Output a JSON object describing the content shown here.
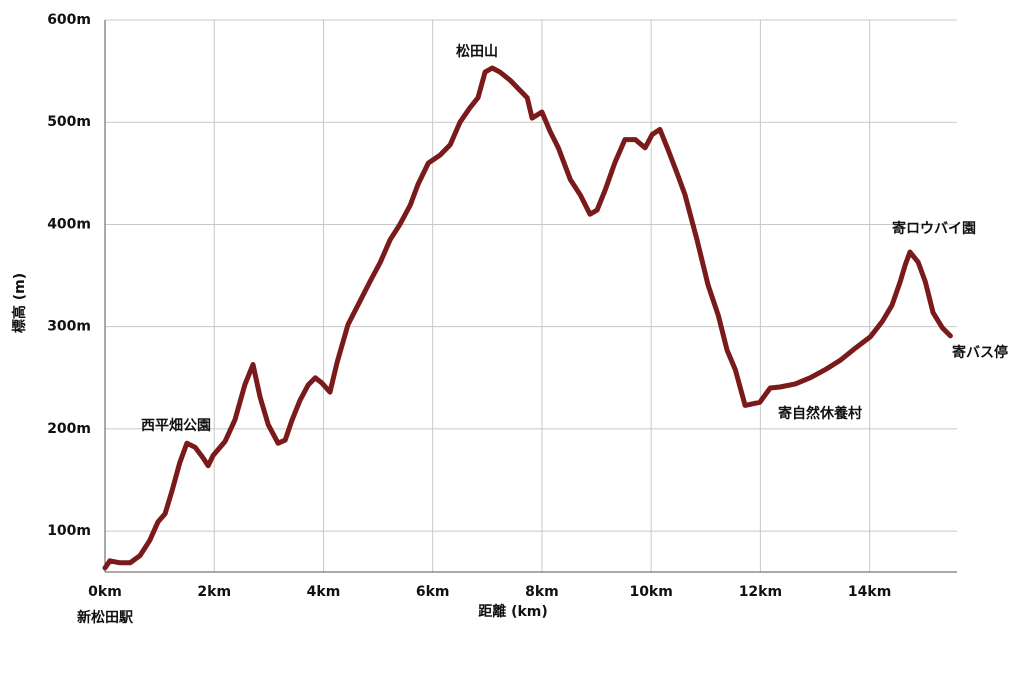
{
  "chart_data": {
    "type": "line",
    "xlabel": "距離 (km)",
    "ylabel": "標高 (m)",
    "xlim": [
      0,
      15.6
    ],
    "ylim": [
      60,
      600
    ],
    "xticks": [
      {
        "value": 0,
        "label": "0km"
      },
      {
        "value": 2,
        "label": "2km"
      },
      {
        "value": 4,
        "label": "4km"
      },
      {
        "value": 6,
        "label": "6km"
      },
      {
        "value": 8,
        "label": "8km"
      },
      {
        "value": 10,
        "label": "10km"
      },
      {
        "value": 12,
        "label": "12km"
      },
      {
        "value": 14,
        "label": "14km"
      }
    ],
    "yticks": [
      {
        "value": 100,
        "label": "100m"
      },
      {
        "value": 200,
        "label": "200m"
      },
      {
        "value": 300,
        "label": "300m"
      },
      {
        "value": 400,
        "label": "400m"
      },
      {
        "value": 500,
        "label": "500m"
      },
      {
        "value": 600,
        "label": "600m"
      }
    ],
    "grid": true,
    "annotations": [
      "新松田駅",
      "西平畑公園",
      "松田山",
      "寄自然休養村",
      "寄ロウバイ園",
      "寄バス停"
    ],
    "series": [
      {
        "color": "#7a1a1a",
        "x": [
          0,
          0.09,
          0.27,
          0.46,
          0.64,
          0.82,
          0.97,
          1.1,
          1.23,
          1.37,
          1.5,
          1.65,
          1.79,
          1.89,
          1.98,
          2.2,
          2.38,
          2.56,
          2.71,
          2.84,
          2.99,
          3.17,
          3.3,
          3.42,
          3.57,
          3.72,
          3.85,
          3.97,
          4.12,
          4.25,
          4.45,
          4.63,
          4.85,
          5.04,
          5.22,
          5.4,
          5.59,
          5.73,
          5.92,
          6.14,
          6.32,
          6.5,
          6.68,
          6.83,
          6.96,
          7.09,
          7.23,
          7.42,
          7.6,
          7.73,
          7.82,
          8.0,
          8.15,
          8.3,
          8.52,
          8.7,
          8.88,
          9.01,
          9.16,
          9.34,
          9.52,
          9.71,
          9.89,
          10.02,
          10.16,
          10.31,
          10.49,
          10.62,
          10.84,
          11.04,
          11.23,
          11.39,
          11.54,
          11.72,
          11.99,
          12.18,
          12.36,
          12.64,
          12.91,
          13.19,
          13.46,
          13.74,
          14.01,
          14.23,
          14.41,
          14.56,
          14.65,
          14.74,
          14.89,
          15.02,
          15.16,
          15.33,
          15.48
        ],
        "values": [
          64,
          71,
          69,
          69,
          76,
          91,
          109,
          117,
          140,
          167,
          186,
          182,
          172,
          164,
          174,
          188,
          209,
          243,
          263,
          231,
          204,
          186,
          189,
          208,
          228,
          243,
          250,
          245,
          236,
          265,
          302,
          321,
          344,
          363,
          385,
          400,
          419,
          439,
          460,
          468,
          478,
          500,
          514,
          524,
          549,
          553,
          549,
          541,
          531,
          524,
          504,
          510,
          491,
          475,
          444,
          429,
          410,
          414,
          434,
          461,
          483,
          483,
          475,
          488,
          493,
          473,
          448,
          429,
          385,
          341,
          311,
          277,
          258,
          223,
          226,
          240,
          241,
          244,
          250,
          258,
          267,
          279,
          290,
          305,
          321,
          344,
          360,
          373,
          363,
          344,
          314,
          299,
          291
        ]
      }
    ]
  }
}
